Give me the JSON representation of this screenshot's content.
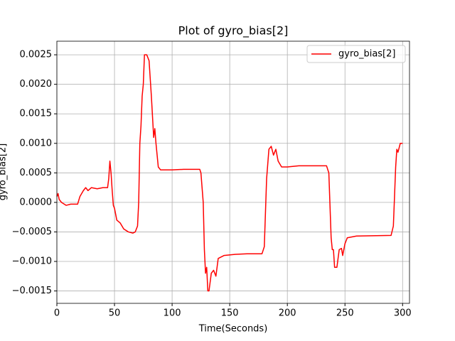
{
  "chart_data": {
    "type": "line",
    "title": "Plot of gyro_bias[2]",
    "xlabel": "Time(Seconds)",
    "ylabel": "gyro_bias[2]",
    "x": [
      0,
      1,
      2,
      4,
      8,
      12,
      18,
      20,
      23,
      25,
      27,
      30,
      35,
      40,
      44,
      45,
      46,
      47,
      48,
      49,
      50,
      52,
      55,
      58,
      62,
      66,
      68,
      70,
      71,
      72,
      73,
      74,
      75,
      76,
      78,
      80,
      82,
      84,
      85,
      86,
      88,
      90,
      100,
      110,
      124,
      125,
      127,
      128,
      129,
      130,
      131,
      132,
      134,
      136,
      138,
      140,
      145,
      155,
      165,
      178,
      180,
      182,
      184,
      186,
      188,
      190,
      192,
      195,
      200,
      210,
      234,
      236,
      238,
      239,
      240,
      241,
      243,
      245,
      247,
      248,
      250,
      252,
      260,
      290,
      292,
      294,
      295,
      296,
      298,
      300
    ],
    "series": [
      {
        "name": "gyro_bias[2]",
        "color": "#ff0000",
        "values": [
          0.0001,
          0.00015,
          5e-05,
          0.0,
          -5e-05,
          -3e-05,
          -3e-05,
          0.0001,
          0.0002,
          0.00025,
          0.0002,
          0.00025,
          0.00023,
          0.00025,
          0.00025,
          0.0004,
          0.0007,
          0.0005,
          0.0002,
          -5e-05,
          -0.0001,
          -0.0003,
          -0.00035,
          -0.00045,
          -0.0005,
          -0.00052,
          -0.0005,
          -0.0004,
          0.0,
          0.001,
          0.0013,
          0.0018,
          0.002,
          0.0025,
          0.0025,
          0.0024,
          0.0018,
          0.0011,
          0.00125,
          0.001,
          0.0006,
          0.00055,
          0.00055,
          0.00056,
          0.00056,
          0.0005,
          0.0,
          -0.0008,
          -0.0012,
          -0.0011,
          -0.0015,
          -0.0015,
          -0.0012,
          -0.00115,
          -0.00125,
          -0.00095,
          -0.0009,
          -0.00088,
          -0.00087,
          -0.00087,
          -0.00075,
          0.0004,
          0.0009,
          0.00095,
          0.0008,
          0.0009,
          0.0007,
          0.0006,
          0.0006,
          0.00062,
          0.00062,
          0.0005,
          -0.0006,
          -0.0008,
          -0.0008,
          -0.0011,
          -0.0011,
          -0.0008,
          -0.00078,
          -0.0009,
          -0.0007,
          -0.0006,
          -0.00057,
          -0.00056,
          -0.0004,
          0.0006,
          0.0009,
          0.00085,
          0.001,
          0.001
        ]
      }
    ],
    "xlim": [
      0,
      306
    ],
    "xticks": [
      0,
      50,
      100,
      150,
      200,
      250,
      300
    ],
    "ylim": [
      -0.00171,
      0.00273
    ],
    "yticks": [
      {
        "value": -0.0015,
        "label": "−0.0015"
      },
      {
        "value": -0.001,
        "label": "−0.0010"
      },
      {
        "value": -0.0005,
        "label": "−0.0005"
      },
      {
        "value": 0,
        "label": "0.0000"
      },
      0.0005,
      {
        "value": 0.001,
        "label": "0.0010"
      },
      0.0015,
      {
        "value": 0.002,
        "label": "0.0020"
      },
      0.0025
    ],
    "grid": true,
    "legend": "upper-right"
  }
}
